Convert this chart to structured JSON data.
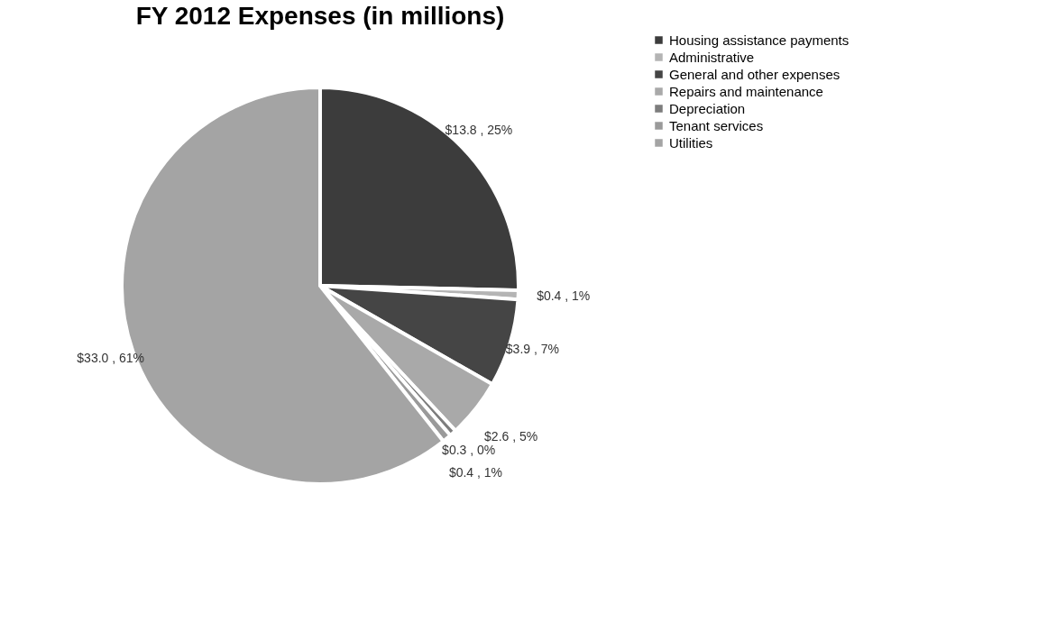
{
  "chart_data": {
    "type": "pie",
    "title": "FY 2012 Expenses (in millions)",
    "categories": [
      "Housing assistance payments",
      "Administrative",
      "General and other expenses",
      "Repairs and maintenance",
      "Depreciation",
      "Tenant services",
      "Utilities"
    ],
    "values": [
      13.8,
      0.4,
      3.9,
      2.6,
      0.3,
      0.4,
      33.0
    ],
    "value_labels": [
      "$13.8 , 25%",
      "$0.4 , 1%",
      "$3.9 , 7%",
      "$2.6 , 5%",
      "$0.3 , 0%",
      "$0.4 , 1%",
      "$33.0 , 61%"
    ],
    "colors": [
      "#3c3c3c",
      "#b4b4b4",
      "#454545",
      "#a9a9a9",
      "#7d7d7d",
      "#9a9a9a",
      "#a4a4a4"
    ],
    "legend": "right"
  }
}
